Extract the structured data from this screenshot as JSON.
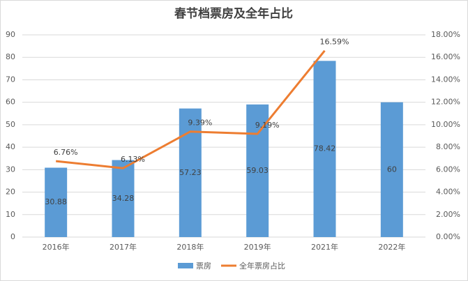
{
  "chart_data": {
    "type": "bar",
    "title": "春节档票房及全年占比",
    "categories": [
      "2016年",
      "2017年",
      "2018年",
      "2019年",
      "2021年",
      "2022年"
    ],
    "series": [
      {
        "name": "票房",
        "type": "bar",
        "color": "#5b9bd5",
        "values": [
          30.88,
          34.28,
          57.23,
          59.03,
          78.42,
          60
        ]
      },
      {
        "name": "全年票房占比",
        "type": "line",
        "axis": "y2",
        "color": "#ed7d31",
        "values": [
          6.76,
          6.13,
          9.39,
          9.19,
          16.59,
          null
        ],
        "value_labels": [
          "6.76%",
          "6.13%",
          "9.39%",
          "9.19%",
          "16.59%",
          null
        ]
      }
    ],
    "ylim": [
      0,
      90
    ],
    "yticks": [
      0,
      10,
      20,
      30,
      40,
      50,
      60,
      70,
      80,
      90
    ],
    "y2lim": [
      0,
      18
    ],
    "y2ticks": [
      {
        "value": 0,
        "label": "0.00%"
      },
      {
        "value": 2,
        "label": "2.00%"
      },
      {
        "value": 4,
        "label": "4.00%"
      },
      {
        "value": 6,
        "label": "6.00%"
      },
      {
        "value": 8,
        "label": "8.00%"
      },
      {
        "value": 10,
        "label": "10.00%"
      },
      {
        "value": 12,
        "label": "12.00%"
      },
      {
        "value": 14,
        "label": "14.00%"
      },
      {
        "value": 16,
        "label": "16.00%"
      },
      {
        "value": 18,
        "label": "18.00%"
      }
    ],
    "legend": "bottom"
  }
}
